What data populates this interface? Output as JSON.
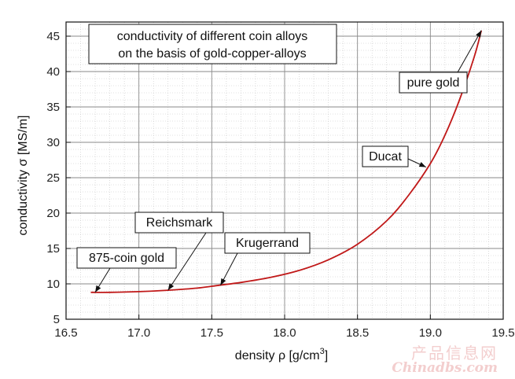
{
  "chart_data": {
    "type": "line",
    "title_lines": [
      "conductivity of different coin alloys",
      "on the basis of gold-copper-alloys"
    ],
    "xlabel": {
      "main": "density ρ  [g/cm",
      "sup": "3",
      "end": "]"
    },
    "ylabel": "conductivity σ  [MS/m]",
    "xlim": [
      16.5,
      19.5
    ],
    "ylim": [
      5,
      47
    ],
    "xticks": [
      "16.5",
      "17.0",
      "17.5",
      "18.0",
      "18.5",
      "19.0",
      "19.5"
    ],
    "yticks": [
      "5",
      "10",
      "15",
      "20",
      "25",
      "30",
      "35",
      "40",
      "45"
    ],
    "grid": true,
    "line_color": "#c01818",
    "series": [
      {
        "x": [
          16.67,
          16.8,
          17.0,
          17.2,
          17.4,
          17.55,
          17.7,
          17.9,
          18.1,
          18.3,
          18.5,
          18.7,
          18.85,
          19.0,
          19.1,
          19.2,
          19.3,
          19.35
        ],
        "y": [
          8.8,
          8.8,
          8.9,
          9.1,
          9.4,
          9.8,
          10.2,
          10.9,
          11.9,
          13.4,
          15.6,
          18.9,
          22.5,
          27.0,
          31.0,
          36.0,
          42.0,
          45.8
        ]
      }
    ],
    "annotations": [
      {
        "label": "pure gold",
        "point": [
          19.35,
          45.8
        ]
      },
      {
        "label": "Ducat",
        "point": [
          18.97,
          26.5
        ]
      },
      {
        "label": "Krugerrand",
        "point": [
          17.56,
          9.8
        ]
      },
      {
        "label": "Reichsmark",
        "point": [
          17.2,
          9.1
        ]
      },
      {
        "label": "875-coin gold",
        "point": [
          16.7,
          8.8
        ]
      }
    ]
  },
  "watermark": {
    "line1": "产品信息网",
    "line2": "Chinadbs.com"
  }
}
